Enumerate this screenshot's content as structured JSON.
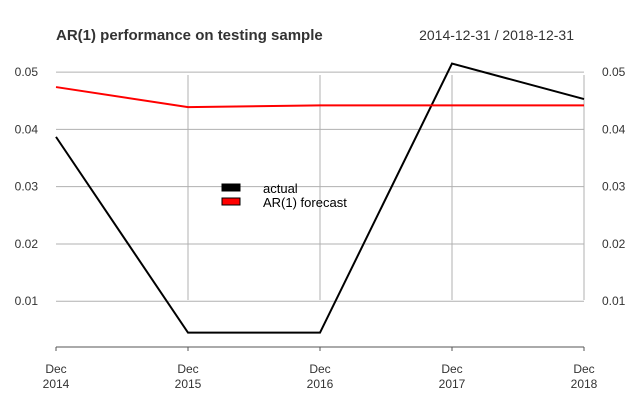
{
  "chart_data": {
    "type": "line",
    "title": "AR(1) performance on testing sample",
    "date_range": "2014-12-31 / 2018-12-31",
    "x": [
      "Dec\n2014",
      "Dec\n2015",
      "Dec\n2016",
      "Dec\n2017",
      "Dec\n2018"
    ],
    "x_tick_labels": [
      {
        "month": "Dec",
        "year": "2014"
      },
      {
        "month": "Dec",
        "year": "2015"
      },
      {
        "month": "Dec",
        "year": "2016"
      },
      {
        "month": "Dec",
        "year": "2017"
      },
      {
        "month": "Dec",
        "year": "2018"
      }
    ],
    "y_ticks": [
      "0.01",
      "0.02",
      "0.03",
      "0.04",
      "0.05"
    ],
    "ylim": [
      0.002,
      0.053
    ],
    "grid": true,
    "legend_position": "center-left",
    "series": [
      {
        "name": "actual",
        "color": "#000000",
        "values": [
          0.0387,
          0.0045,
          0.0045,
          0.0515,
          0.0453
        ]
      },
      {
        "name": "AR(1) forecast",
        "color": "#ff0000",
        "values": [
          0.0474,
          0.0439,
          0.0442,
          0.0442,
          0.0442
        ]
      }
    ]
  }
}
